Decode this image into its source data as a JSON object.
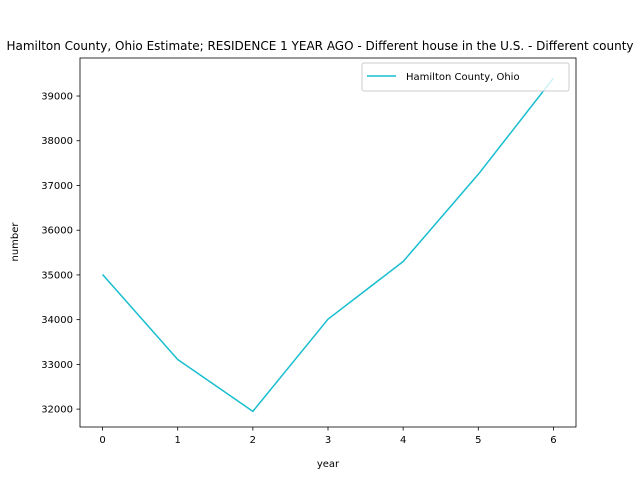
{
  "chart_data": {
    "type": "line",
    "title": "Hamilton County, Ohio Estimate; RESIDENCE 1 YEAR AGO - Different house in the U.S. - Different county",
    "xlabel": "year",
    "ylabel": "number",
    "x": [
      0,
      1,
      2,
      3,
      4,
      5,
      6
    ],
    "series": [
      {
        "name": "Hamilton County, Ohio",
        "color": "#17becf",
        "values": [
          35010,
          33110,
          31950,
          34010,
          35300,
          37250,
          39400
        ]
      }
    ],
    "xlim": [
      -0.3,
      6.3
    ],
    "ylim": [
      31600,
      39850
    ],
    "xticks": [
      0,
      1,
      2,
      3,
      4,
      5,
      6
    ],
    "yticks": [
      32000,
      33000,
      34000,
      35000,
      36000,
      37000,
      38000,
      39000
    ],
    "xtick_labels": [
      "0",
      "1",
      "2",
      "3",
      "4",
      "5",
      "6"
    ],
    "ytick_labels": [
      "32000",
      "33000",
      "34000",
      "35000",
      "36000",
      "37000",
      "38000",
      "39000"
    ],
    "grid": false,
    "legend_position": "upper right"
  }
}
